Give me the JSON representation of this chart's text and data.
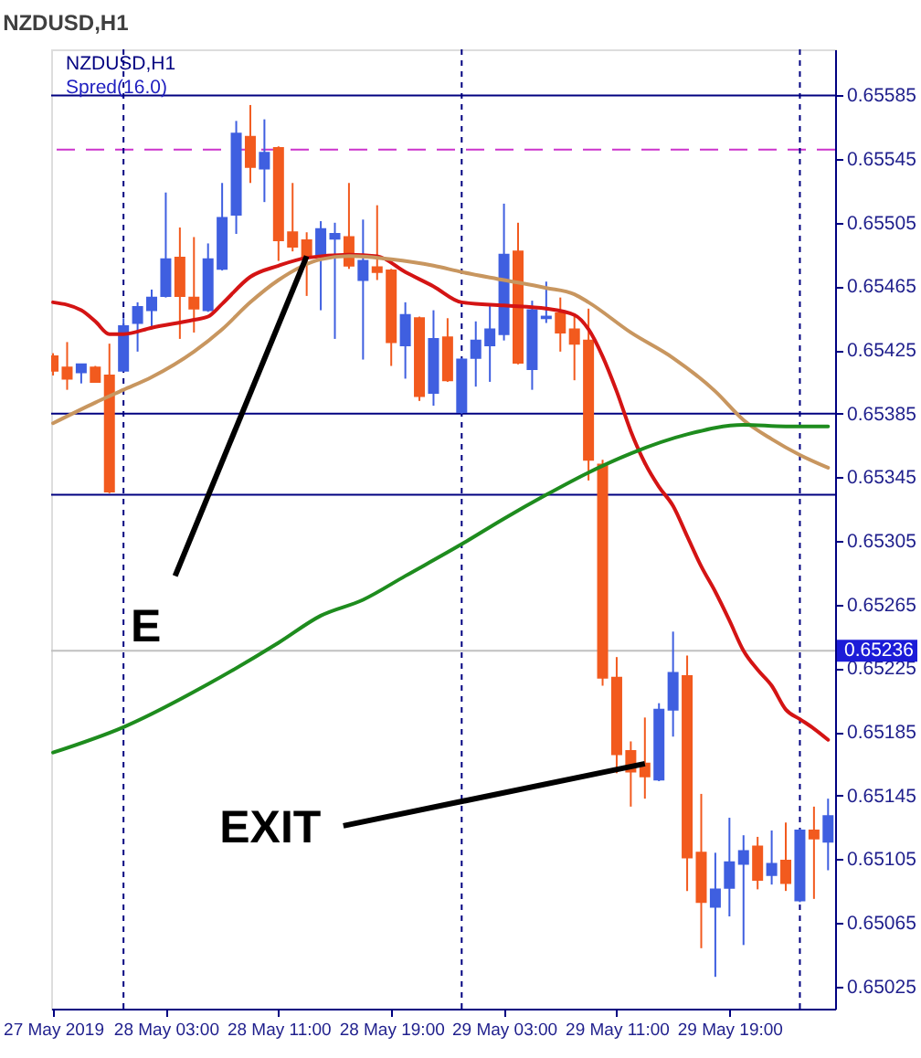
{
  "chart_data": {
    "type": "candlestick",
    "title": "NZDUSD,H1",
    "x": [
      "2019-05-27T19:00",
      "2019-05-27T20:00",
      "2019-05-27T21:00",
      "2019-05-27T22:00",
      "2019-05-27T23:00",
      "2019-05-28T00:00",
      "2019-05-28T01:00",
      "2019-05-28T02:00",
      "2019-05-28T03:00",
      "2019-05-28T04:00",
      "2019-05-28T05:00",
      "2019-05-28T06:00",
      "2019-05-28T07:00",
      "2019-05-28T08:00",
      "2019-05-28T09:00",
      "2019-05-28T10:00",
      "2019-05-28T11:00",
      "2019-05-28T12:00",
      "2019-05-28T13:00",
      "2019-05-28T14:00",
      "2019-05-28T15:00",
      "2019-05-28T16:00",
      "2019-05-28T17:00",
      "2019-05-28T18:00",
      "2019-05-28T19:00",
      "2019-05-28T20:00",
      "2019-05-28T21:00",
      "2019-05-28T22:00",
      "2019-05-28T23:00",
      "2019-05-29T00:00",
      "2019-05-29T01:00",
      "2019-05-29T02:00",
      "2019-05-29T03:00",
      "2019-05-29T04:00",
      "2019-05-29T05:00",
      "2019-05-29T06:00",
      "2019-05-29T07:00",
      "2019-05-29T08:00",
      "2019-05-29T09:00",
      "2019-05-29T10:00",
      "2019-05-29T11:00",
      "2019-05-29T12:00",
      "2019-05-29T13:00",
      "2019-05-29T14:00",
      "2019-05-29T15:00",
      "2019-05-29T16:00",
      "2019-05-29T17:00",
      "2019-05-29T18:00",
      "2019-05-29T19:00",
      "2019-05-29T20:00",
      "2019-05-29T21:00",
      "2019-05-29T22:00",
      "2019-05-29T23:00",
      "2019-05-30T00:00",
      "2019-05-30T01:00",
      "2019-05-30T02:00"
    ],
    "ohlc": [
      [
        0.65421,
        0.65423,
        0.65409,
        0.65412
      ],
      [
        0.65414,
        0.6543,
        0.654,
        0.65407
      ],
      [
        0.65411,
        0.65416,
        0.65404,
        0.65416
      ],
      [
        0.65414,
        0.65415,
        0.65405,
        0.65405
      ],
      [
        0.65409,
        0.65429,
        0.65335,
        0.65336
      ],
      [
        0.65412,
        0.65445,
        0.65412,
        0.6544
      ],
      [
        0.65442,
        0.65455,
        0.65424,
        0.65452
      ],
      [
        0.6545,
        0.65463,
        0.65438,
        0.65458
      ],
      [
        0.65459,
        0.65524,
        0.65458,
        0.65482
      ],
      [
        0.65483,
        0.65502,
        0.65432,
        0.65459
      ],
      [
        0.65458,
        0.65496,
        0.65436,
        0.65451
      ],
      [
        0.6545,
        0.65492,
        0.65449,
        0.65482
      ],
      [
        0.65476,
        0.6553,
        0.65475,
        0.65508
      ],
      [
        0.6551,
        0.65569,
        0.65498,
        0.65561
      ],
      [
        0.65559,
        0.65579,
        0.6553,
        0.6554
      ],
      [
        0.65539,
        0.6557,
        0.65518,
        0.65549
      ],
      [
        0.65552,
        0.65553,
        0.65481,
        0.65494
      ],
      [
        0.65499,
        0.6553,
        0.65487,
        0.6549
      ],
      [
        0.65494,
        0.65499,
        0.65459,
        0.65483
      ],
      [
        0.65485,
        0.65506,
        0.6545,
        0.65501
      ],
      [
        0.65495,
        0.65505,
        0.65432,
        0.65498
      ],
      [
        0.65496,
        0.6553,
        0.65476,
        0.65478
      ],
      [
        0.65469,
        0.65507,
        0.65419,
        0.65481
      ],
      [
        0.65477,
        0.65516,
        0.65469,
        0.65474
      ],
      [
        0.65475,
        0.65476,
        0.65415,
        0.6543
      ],
      [
        0.65428,
        0.65455,
        0.65407,
        0.65447
      ],
      [
        0.65445,
        0.65446,
        0.65393,
        0.65396
      ],
      [
        0.65398,
        0.6545,
        0.6539,
        0.65432
      ],
      [
        0.65433,
        0.65445,
        0.65405,
        0.65406
      ],
      [
        0.65386,
        0.6542,
        0.65385,
        0.65419
      ],
      [
        0.6542,
        0.65443,
        0.65402,
        0.65431
      ],
      [
        0.65428,
        0.65453,
        0.65405,
        0.65438
      ],
      [
        0.65435,
        0.65517,
        0.65431,
        0.65485
      ],
      [
        0.65487,
        0.65505,
        0.65416,
        0.65417
      ],
      [
        0.65413,
        0.65456,
        0.654,
        0.6545
      ],
      [
        0.65445,
        0.65468,
        0.65442,
        0.65446
      ],
      [
        0.65448,
        0.65458,
        0.65424,
        0.65436
      ],
      [
        0.65438,
        0.65448,
        0.65406,
        0.65429
      ],
      [
        0.65431,
        0.65451,
        0.65343,
        0.65356
      ],
      [
        0.65353,
        0.65356,
        0.65214,
        0.65219
      ],
      [
        0.65219,
        0.65232,
        0.65159,
        0.65171
      ],
      [
        0.65173,
        0.65179,
        0.65138,
        0.6516
      ],
      [
        0.65165,
        0.65194,
        0.65143,
        0.65157
      ],
      [
        0.65155,
        0.65203,
        0.65154,
        0.65199
      ],
      [
        0.65199,
        0.65248,
        0.65182,
        0.65222
      ],
      [
        0.6522,
        0.65233,
        0.65085,
        0.65106
      ],
      [
        0.65109,
        0.65146,
        0.65049,
        0.65078
      ],
      [
        0.65075,
        0.65109,
        0.65031,
        0.65086
      ],
      [
        0.65087,
        0.65131,
        0.65069,
        0.65103
      ],
      [
        0.65102,
        0.6512,
        0.65051,
        0.6511
      ],
      [
        0.65113,
        0.65119,
        0.65086,
        0.65092
      ],
      [
        0.65095,
        0.65123,
        0.65089,
        0.65102
      ],
      [
        0.65104,
        0.65128,
        0.65085,
        0.6509
      ],
      [
        0.65079,
        0.65124,
        0.65078,
        0.65123
      ],
      [
        0.65123,
        0.65138,
        0.6508,
        0.65118
      ],
      [
        0.65116,
        0.65143,
        0.65098,
        0.65132
      ]
    ],
    "colors": [
      "#f25a1e",
      "#f25a1e",
      "#3f5fe0",
      "#f25a1e",
      "#f25a1e",
      "#3f5fe0",
      "#3f5fe0",
      "#3f5fe0",
      "#3f5fe0",
      "#f25a1e",
      "#f25a1e",
      "#3f5fe0",
      "#3f5fe0",
      "#3f5fe0",
      "#f25a1e",
      "#3f5fe0",
      "#f25a1e",
      "#f25a1e",
      "#f25a1e",
      "#3f5fe0",
      "#3f5fe0",
      "#f25a1e",
      "#3f5fe0",
      "#f25a1e",
      "#f25a1e",
      "#3f5fe0",
      "#f25a1e",
      "#3f5fe0",
      "#f25a1e",
      "#3f5fe0",
      "#3f5fe0",
      "#3f5fe0",
      "#3f5fe0",
      "#f25a1e",
      "#3f5fe0",
      "#3f5fe0",
      "#f25a1e",
      "#f25a1e",
      "#f25a1e",
      "#f25a1e",
      "#f25a1e",
      "#f25a1e",
      "#f25a1e",
      "#3f5fe0",
      "#3f5fe0",
      "#f25a1e",
      "#f25a1e",
      "#3f5fe0",
      "#3f5fe0",
      "#3f5fe0",
      "#f25a1e",
      "#3f5fe0",
      "#f25a1e",
      "#3f5fe0",
      "#f25a1e",
      "#3f5fe0"
    ],
    "series": [
      {
        "type": "line",
        "color": "#d41414",
        "x": [
          "2019-05-27T19:00",
          "2019-05-27T21:00",
          "2019-05-27T22:00",
          "2019-05-27T23:00",
          "2019-05-28T00:00",
          "2019-05-28T02:00",
          "2019-05-28T05:00",
          "2019-05-28T06:00",
          "2019-05-28T07:00",
          "2019-05-28T09:00",
          "2019-05-28T11:00",
          "2019-05-28T13:00",
          "2019-05-28T16:00",
          "2019-05-28T18:00",
          "2019-05-28T20:00",
          "2019-05-28T22:00",
          "2019-05-29T00:00",
          "2019-05-29T03:00",
          "2019-05-29T06:00",
          "2019-05-29T08:00",
          "2019-05-29T09:00",
          "2019-05-29T10:00",
          "2019-05-29T11:00",
          "2019-05-29T12:00",
          "2019-05-29T13:00",
          "2019-05-29T14:00",
          "2019-05-29T15:00",
          "2019-05-29T16:00",
          "2019-05-29T17:00",
          "2019-05-29T18:00",
          "2019-05-29T19:00",
          "2019-05-29T20:00",
          "2019-05-29T21:00",
          "2019-05-29T22:00",
          "2019-05-29T23:00",
          "2019-05-30T00:00",
          "2019-05-30T01:00",
          "2019-05-30T02:00"
        ],
        "values": [
          0.65455,
          0.6545,
          0.65443,
          0.65435,
          0.65435,
          0.65439,
          0.65444,
          0.65446,
          0.65454,
          0.65471,
          0.65478,
          0.65483,
          0.65485,
          0.65484,
          0.65474,
          0.65465,
          0.65455,
          0.65453,
          0.65451,
          0.65447,
          0.65438,
          0.65421,
          0.65399,
          0.65374,
          0.65354,
          0.65339,
          0.65327,
          0.65308,
          0.65289,
          0.65273,
          0.65255,
          0.65236,
          0.65224,
          0.65214,
          0.65199,
          0.65193,
          0.65187,
          0.6518
        ]
      },
      {
        "type": "line",
        "color": "#c8965f",
        "x": [
          "2019-05-27T19:00",
          "2019-05-27T22:00",
          "2019-05-28T00:00",
          "2019-05-28T02:00",
          "2019-05-28T05:00",
          "2019-05-28T07:00",
          "2019-05-28T09:00",
          "2019-05-28T11:00",
          "2019-05-28T14:00",
          "2019-05-28T16:00",
          "2019-05-28T19:00",
          "2019-05-28T22:00",
          "2019-05-29T00:00",
          "2019-05-29T03:00",
          "2019-05-29T06:00",
          "2019-05-29T08:00",
          "2019-05-29T09:00",
          "2019-05-29T12:00",
          "2019-05-29T15:00",
          "2019-05-29T18:00",
          "2019-05-29T20:00",
          "2019-05-29T22:00",
          "2019-05-30T00:00",
          "2019-05-30T02:00"
        ],
        "values": [
          0.65379,
          0.65392,
          0.654,
          0.65408,
          0.65424,
          0.65438,
          0.65455,
          0.65469,
          0.65482,
          0.65484,
          0.65482,
          0.65478,
          0.65474,
          0.65469,
          0.65464,
          0.6546,
          0.65455,
          0.65436,
          0.6542,
          0.65399,
          0.65381,
          0.65369,
          0.65359,
          0.65351
        ]
      },
      {
        "type": "line",
        "color": "#1e8c1e",
        "x": [
          "2019-05-27T19:00",
          "2019-05-28T00:00",
          "2019-05-28T06:00",
          "2019-05-28T11:00",
          "2019-05-28T14:00",
          "2019-05-28T17:00",
          "2019-05-28T20:00",
          "2019-05-29T00:00",
          "2019-05-29T03:00",
          "2019-05-29T06:00",
          "2019-05-29T09:00",
          "2019-05-29T12:00",
          "2019-05-29T16:00",
          "2019-05-29T20:00",
          "2019-05-29T23:00",
          "2019-05-30T02:00"
        ],
        "values": [
          0.65172,
          0.65188,
          0.65215,
          0.65241,
          0.65258,
          0.65268,
          0.65283,
          0.65303,
          0.65319,
          0.65334,
          0.65348,
          0.6536,
          0.65372,
          0.65378,
          0.65377,
          0.65377
        ]
      }
    ],
    "xlim": [
      "2019-05-27T18:52",
      "2019-05-30T02:30"
    ],
    "xticks": [
      {
        "value": "2019-05-27T19:00",
        "label": "27 May 2019"
      },
      {
        "value": "2019-05-28T03:00",
        "label": "28 May 03:00"
      },
      {
        "value": "2019-05-28T11:00",
        "label": "28 May 11:00"
      },
      {
        "value": "2019-05-28T19:00",
        "label": "28 May 19:00"
      },
      {
        "value": "2019-05-29T03:00",
        "label": "29 May 03:00"
      },
      {
        "value": "2019-05-29T11:00",
        "label": "29 May 11:00"
      },
      {
        "value": "2019-05-29T19:00",
        "label": "29 May 19:00"
      }
    ],
    "ylim": [
      0.65011,
      0.65614
    ],
    "yticks": [
      0.65585,
      0.65545,
      0.65505,
      0.65465,
      0.65425,
      0.65385,
      0.65345,
      0.65305,
      0.65265,
      0.65225,
      0.65185,
      0.65145,
      0.65105,
      0.65065,
      0.65025
    ],
    "ref_lines": [
      {
        "axis": "y",
        "value": 0.65585,
        "color": "#000080"
      },
      {
        "axis": "y",
        "value": 0.65551,
        "color": "#cc33cc",
        "line_style": "dashed"
      },
      {
        "axis": "y",
        "value": 0.65385,
        "color": "#000080"
      },
      {
        "axis": "y",
        "value": 0.65334,
        "color": "#000080"
      },
      {
        "axis": "y",
        "value": 0.65236,
        "label": "0.65236",
        "color": "#c0c0c0"
      },
      {
        "axis": "x",
        "value": "2019-05-28T00:00",
        "color": "#000080",
        "line_style": "dotted"
      },
      {
        "axis": "x",
        "value": "2019-05-29T00:00",
        "color": "#000080",
        "line_style": "dotted"
      },
      {
        "axis": "x",
        "value": "2019-05-30T00:00",
        "color": "#000080",
        "line_style": "dotted"
      }
    ],
    "annotations": [
      "Spred(16.0)",
      {
        "text": "E",
        "x": "2019-05-28T13:00",
        "y": 0.65484
      },
      {
        "text": "EXIT",
        "x": "2019-05-29T13:00",
        "y": 0.65165
      }
    ]
  }
}
